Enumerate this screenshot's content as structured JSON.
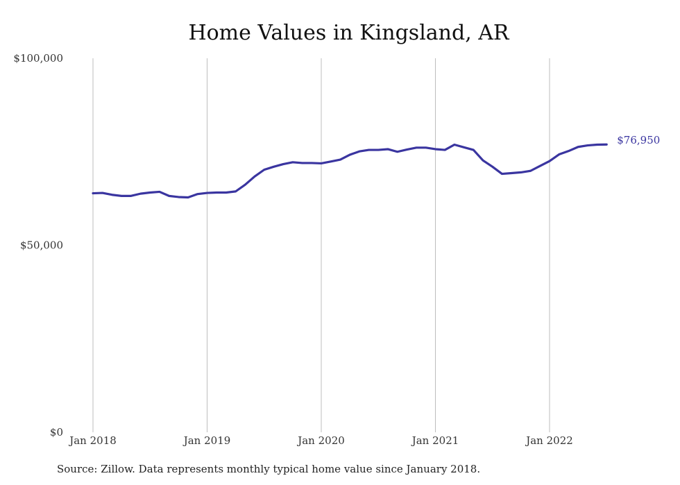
{
  "chart_data": {
    "type": "line",
    "title": "Home Values in Kingsland, AR",
    "source_note": "Source: Zillow. Data represents monthly typical home value since January 2018.",
    "ylim": [
      0,
      100000
    ],
    "y_ticks": [
      {
        "value": 0,
        "label": "$0"
      },
      {
        "value": 50000,
        "label": "$50,000"
      },
      {
        "value": 100000,
        "label": "$100,000"
      }
    ],
    "x_ticks": [
      {
        "index": 0,
        "label": "Jan 2018"
      },
      {
        "index": 12,
        "label": "Jan 2019"
      },
      {
        "index": 24,
        "label": "Jan 2020"
      },
      {
        "index": 36,
        "label": "Jan 2021"
      },
      {
        "index": 48,
        "label": "Jan 2022"
      }
    ],
    "grid": "vertical",
    "line_color": "#3a35a0",
    "end_label": "$76,950",
    "series": [
      {
        "x": [
          "2018-01",
          "2018-02",
          "2018-03",
          "2018-04",
          "2018-05",
          "2018-06",
          "2018-07",
          "2018-08",
          "2018-09",
          "2018-10",
          "2018-11",
          "2018-12",
          "2019-01",
          "2019-02",
          "2019-03",
          "2019-04",
          "2019-05",
          "2019-06",
          "2019-07",
          "2019-08",
          "2019-09",
          "2019-10",
          "2019-11",
          "2019-12",
          "2020-01",
          "2020-02",
          "2020-03",
          "2020-04",
          "2020-05",
          "2020-06",
          "2020-07",
          "2020-08",
          "2020-09",
          "2020-10",
          "2020-11",
          "2020-12",
          "2021-01",
          "2021-02",
          "2021-03",
          "2021-04",
          "2021-05",
          "2021-06",
          "2021-07",
          "2021-08",
          "2021-09",
          "2021-10",
          "2021-11",
          "2021-12",
          "2022-01",
          "2022-02",
          "2022-03",
          "2022-04",
          "2022-05",
          "2022-06",
          "2022-07"
        ],
        "values": [
          63900,
          64000,
          63500,
          63200,
          63200,
          63800,
          64100,
          64300,
          63200,
          62900,
          62800,
          63700,
          64000,
          64100,
          64100,
          64400,
          66200,
          68400,
          70200,
          71000,
          71700,
          72200,
          72000,
          72000,
          71900,
          72400,
          72900,
          74200,
          75100,
          75500,
          75500,
          75700,
          75000,
          75600,
          76100,
          76100,
          75700,
          75500,
          76900,
          76200,
          75500,
          72700,
          71000,
          69100,
          69300,
          69500,
          69900,
          71200,
          72500,
          74300,
          75200,
          76300,
          76700,
          76900,
          76950
        ]
      }
    ]
  }
}
